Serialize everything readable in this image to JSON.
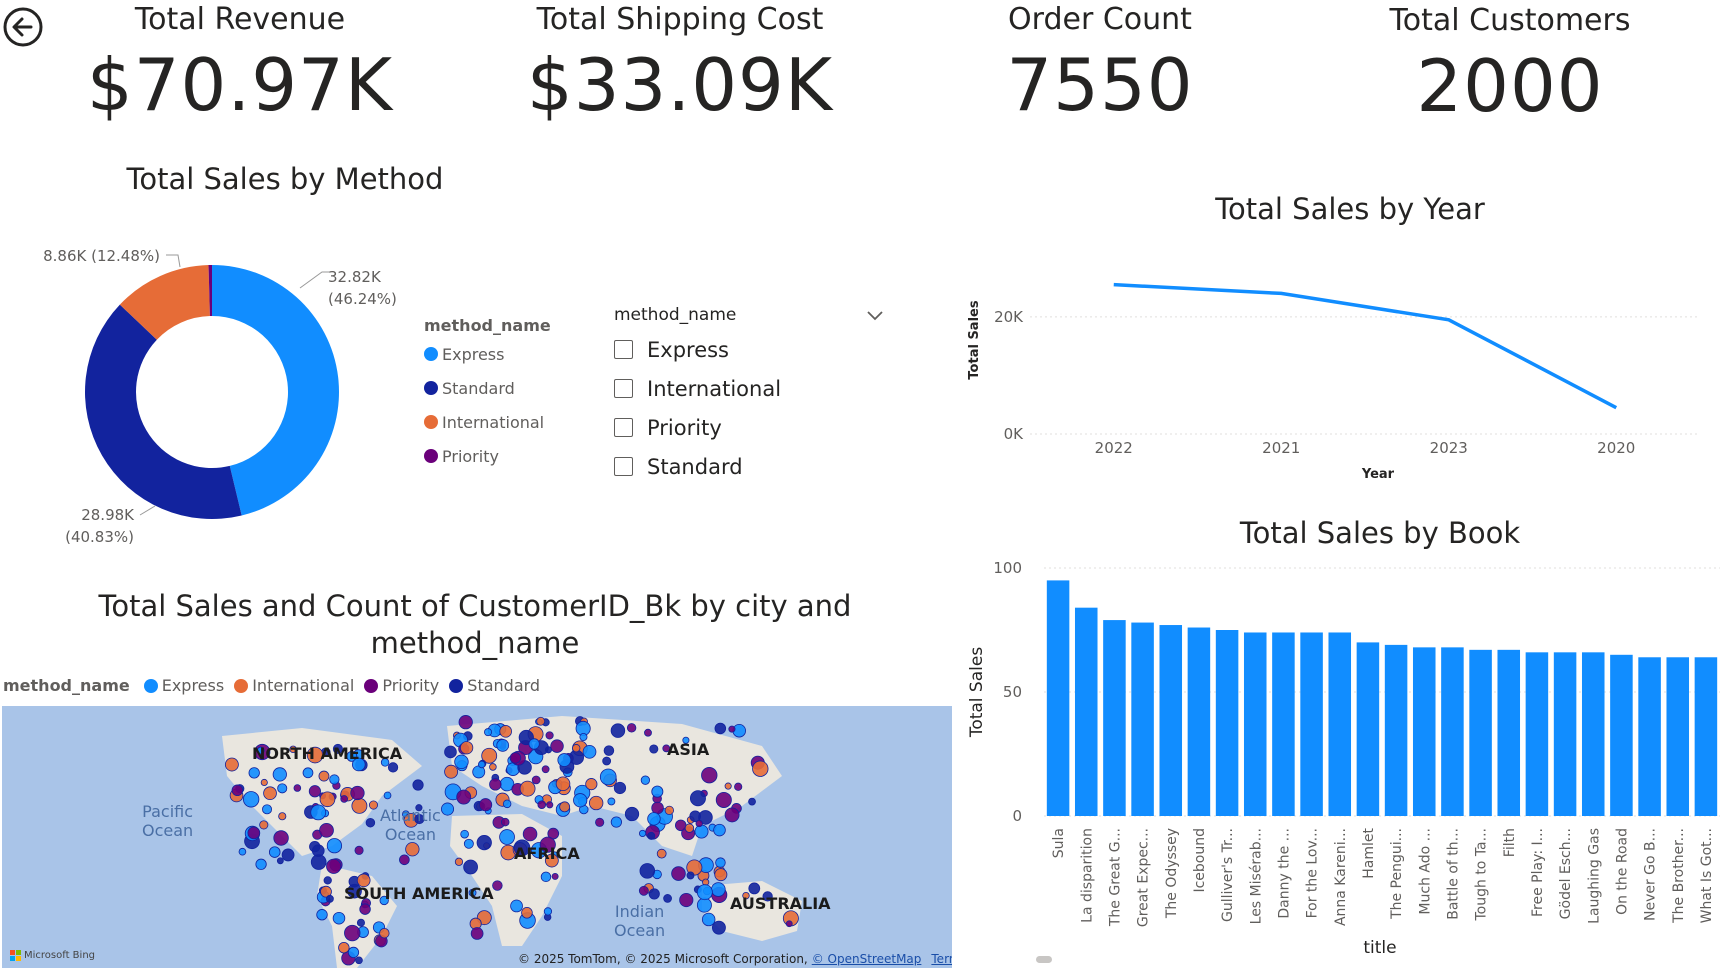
{
  "kpis": [
    {
      "title": "Total Revenue",
      "value": "$70.97K"
    },
    {
      "title": "Total Shipping Cost",
      "value": "$33.09K"
    },
    {
      "title": "Order Count",
      "value": "7550"
    },
    {
      "title": "Total Customers",
      "value": "2000"
    }
  ],
  "donut": {
    "title": "Total Sales by Method",
    "legend_title": "method_name",
    "legend": [
      {
        "name": "Express",
        "color": "#118dff"
      },
      {
        "name": "Standard",
        "color": "#12239e"
      },
      {
        "name": "International",
        "color": "#e66c37"
      },
      {
        "name": "Priority",
        "color": "#6b007b"
      }
    ],
    "labels": {
      "express_value": "32.82K",
      "express_pct": "(46.24%)",
      "standard_value": "28.98K",
      "standard_pct": "(40.83%)",
      "international": "8.86K (12.48%)"
    }
  },
  "slicer": {
    "title": "method_name",
    "options": [
      "Express",
      "International",
      "Priority",
      "Standard"
    ]
  },
  "year_chart": {
    "title": "Total Sales by Year",
    "xlabel": "Year",
    "ylabel": "Total Sales",
    "y_ticks": [
      "20K",
      "0K"
    ]
  },
  "book_chart": {
    "title": "Total Sales by Book",
    "xlabel": "title",
    "ylabel": "Total Sales",
    "y_ticks": [
      "100",
      "50",
      "0"
    ]
  },
  "map": {
    "title_line1": "Total Sales and Count of CustomerID_Bk by city and",
    "title_line2": "method_name",
    "legend_title": "method_name",
    "legend": [
      {
        "name": "Express",
        "color": "#118dff"
      },
      {
        "name": "International",
        "color": "#e66c37"
      },
      {
        "name": "Priority",
        "color": "#6b007b"
      },
      {
        "name": "Standard",
        "color": "#12239e"
      }
    ],
    "continents": [
      "NORTH AMERICA",
      "ASIA",
      "AFRICA",
      "SOUTH AMERICA",
      "AUSTRALIA"
    ],
    "oceans": {
      "pacific": "Pacific\nOcean",
      "atlantic": "Atlantic\nOcean",
      "indian": "Indian\nOcean"
    },
    "attribution": "© 2025 TomTom, © 2025 Microsoft Corporation,",
    "osm_link": "© OpenStreetMap",
    "terms_link": "Terms",
    "bing": "Microsoft Bing"
  },
  "chart_data": [
    {
      "type": "pie",
      "title": "Total Sales by Method",
      "categories": [
        "Express",
        "Standard",
        "International",
        "Priority"
      ],
      "values": [
        32.82,
        28.98,
        8.86,
        0.31
      ],
      "colors": [
        "#118dff",
        "#12239e",
        "#e66c37",
        "#6b007b"
      ]
    },
    {
      "type": "line",
      "title": "Total Sales by Year",
      "xlabel": "Year",
      "ylabel": "Total Sales",
      "categories": [
        "2022",
        "2021",
        "2023",
        "2020"
      ],
      "values": [
        25500,
        24000,
        19500,
        4500
      ],
      "ylim": [
        0,
        28000
      ],
      "y_ticks": [
        0,
        20000
      ],
      "color": "#118dff"
    },
    {
      "type": "bar",
      "title": "Total Sales by Book",
      "xlabel": "title",
      "ylabel": "Total Sales",
      "categories": [
        "Sula",
        "La disparition",
        "The Great G...",
        "Great Expec...",
        "The Odyssey",
        "Icebound",
        "Gulliver's Tr...",
        "Les Misérab...",
        "Danny the ...",
        "For the Lov...",
        "Anna Kareni...",
        "Hamlet",
        "The Pengui...",
        "Much Ado ...",
        "Battle of th...",
        "Tough to Ta...",
        "Filth",
        "Free Play: I...",
        "Gödel Esch...",
        "Laughing Gas",
        "On the Road",
        "Never Go B...",
        "The Brother...",
        "What Is Got..."
      ],
      "values": [
        95,
        84,
        79,
        78,
        77,
        76,
        75,
        74,
        74,
        74,
        74,
        70,
        69,
        68,
        68,
        67,
        67,
        66,
        66,
        66,
        65,
        64,
        64,
        64
      ],
      "ylim": [
        0,
        100
      ],
      "y_ticks": [
        0,
        50,
        100
      ],
      "color": "#118dff"
    }
  ]
}
